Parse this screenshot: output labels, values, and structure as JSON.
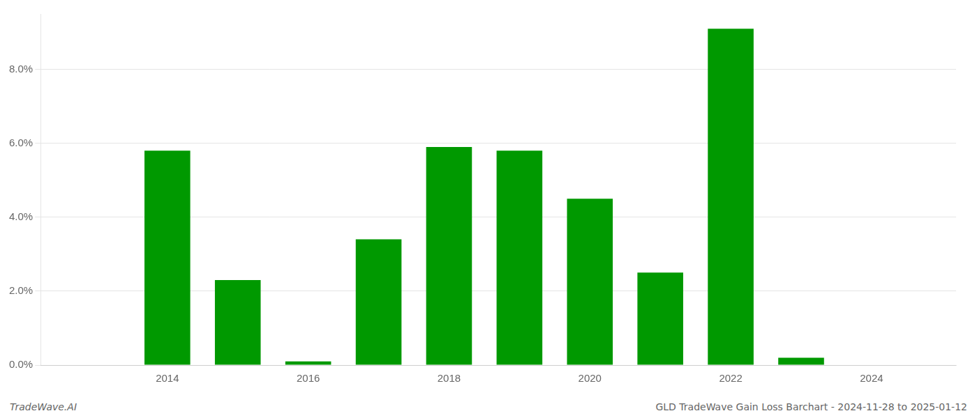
{
  "chart_data": {
    "type": "bar",
    "x": [
      2013,
      2014,
      2015,
      2016,
      2017,
      2018,
      2019,
      2020,
      2021,
      2022,
      2023,
      2024
    ],
    "values": [
      0.0,
      0.058,
      0.023,
      0.001,
      0.034,
      0.059,
      0.058,
      0.045,
      0.025,
      0.091,
      0.002,
      0.0
    ],
    "color": "#009900",
    "xlim": [
      2012.2,
      2025.2
    ],
    "xticks": [
      2014,
      2016,
      2018,
      2020,
      2022,
      2024
    ],
    "ylim": [
      0,
      0.095
    ],
    "yticks": [
      {
        "value": 0.0,
        "label": "0.0%"
      },
      {
        "value": 0.02,
        "label": "2.0%"
      },
      {
        "value": 0.04,
        "label": "4.0%"
      },
      {
        "value": 0.06,
        "label": "6.0%"
      },
      {
        "value": 0.08,
        "label": "8.0%"
      }
    ],
    "grid": true,
    "annotations": [
      "TradeWave.AI",
      "GLD TradeWave Gain Loss Barchart - 2024-11-28 to 2025-01-12"
    ]
  }
}
